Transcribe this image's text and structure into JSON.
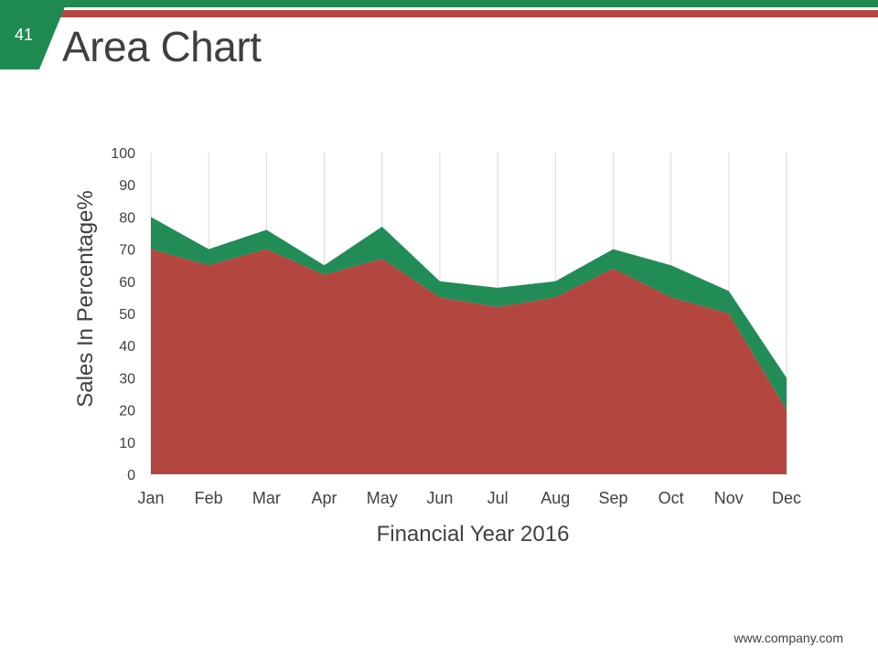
{
  "slide": {
    "number": "41",
    "title": "Area Chart",
    "footer_url": "www.company.com"
  },
  "colors": {
    "accent_green": "#1e8a4f",
    "accent_red": "#b3473f",
    "series_red": "#b3473f",
    "series_green": "#228c57"
  },
  "chart_data": {
    "type": "area",
    "stacked": true,
    "categories": [
      "Jan",
      "Feb",
      "Mar",
      "Apr",
      "May",
      "Jun",
      "Jul",
      "Aug",
      "Sep",
      "Oct",
      "Nov",
      "Dec"
    ],
    "series": [
      {
        "values": [
          70,
          65,
          70,
          62,
          67,
          55,
          52,
          55,
          64,
          55,
          50,
          20
        ]
      },
      {
        "values": [
          10,
          5,
          6,
          3,
          10,
          5,
          6,
          5,
          6,
          10,
          7,
          10
        ]
      }
    ],
    "xlabel": "Financial Year 2016",
    "ylabel": "Sales In Percentage%",
    "ylim": [
      0,
      100
    ],
    "yticks": [
      0,
      10,
      20,
      30,
      40,
      50,
      60,
      70,
      80,
      90,
      100
    ],
    "grid": {
      "vertical": true,
      "horizontal": false
    },
    "legend": "none"
  }
}
